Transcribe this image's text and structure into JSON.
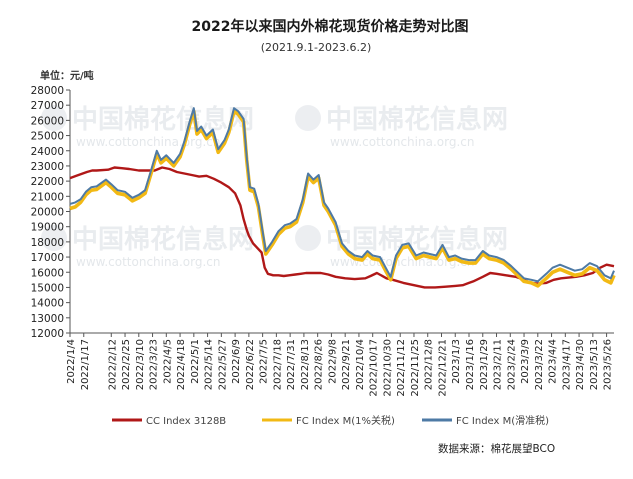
{
  "chart_data": {
    "type": "line",
    "title": "2022年以来国内外棉花现货价格走势对比图",
    "subtitle": "(2021.9.1-2023.6.2)",
    "ylabel": "单位：元/吨",
    "ylim": [
      12000,
      28000
    ],
    "yticks": [
      12000,
      13000,
      14000,
      15000,
      16000,
      17000,
      18000,
      19000,
      20000,
      21000,
      22000,
      23000,
      24000,
      25000,
      26000,
      27000,
      28000
    ],
    "xstart": "2022-01-04",
    "xend": "2023-06-02",
    "xticks": [
      "2022/1/4",
      "2022/1/17",
      "2022/2/12",
      "2022/2/25",
      "2022/3/10",
      "2022/3/23",
      "2022/4/5",
      "2022/4/18",
      "2022/5/1",
      "2022/5/14",
      "2022/5/27",
      "2022/6/9",
      "2022/6/22",
      "2022/7/5",
      "2022/7/18",
      "2022/7/31",
      "2022/8/13",
      "2022/8/26",
      "2022/9/8",
      "2022/9/21",
      "2022/10/4",
      "2022/10/17",
      "2022/10/30",
      "2022/11/12",
      "2022/11/25",
      "2022/12/8",
      "2022/12/21",
      "2023/1/3",
      "2023/1/16",
      "2023/1/29",
      "2023/2/11",
      "2023/2/24",
      "2023/3/9",
      "2023/3/22",
      "2023/4/4",
      "2023/4/17",
      "2023/4/30",
      "2023/5/13",
      "2023/5/26"
    ],
    "legend_position": "bottom",
    "grid": false,
    "series": [
      {
        "name": "CC Index 3128B",
        "color": "#b01818",
        "points": [
          [
            "2022-01-04",
            22200
          ],
          [
            "2022-01-10",
            22350
          ],
          [
            "2022-01-16",
            22500
          ],
          [
            "2022-01-20",
            22600
          ],
          [
            "2022-01-25",
            22700
          ],
          [
            "2022-01-29",
            22700
          ],
          [
            "2022-02-09",
            22750
          ],
          [
            "2022-02-15",
            22900
          ],
          [
            "2022-02-22",
            22850
          ],
          [
            "2022-03-01",
            22800
          ],
          [
            "2022-03-10",
            22700
          ],
          [
            "2022-03-18",
            22700
          ],
          [
            "2022-03-25",
            22700
          ],
          [
            "2022-04-01",
            22900
          ],
          [
            "2022-04-08",
            22800
          ],
          [
            "2022-04-15",
            22600
          ],
          [
            "2022-04-22",
            22500
          ],
          [
            "2022-04-29",
            22400
          ],
          [
            "2022-05-06",
            22300
          ],
          [
            "2022-05-13",
            22350
          ],
          [
            "2022-05-20",
            22150
          ],
          [
            "2022-05-27",
            21900
          ],
          [
            "2022-06-03",
            21600
          ],
          [
            "2022-06-09",
            21200
          ],
          [
            "2022-06-14",
            20400
          ],
          [
            "2022-06-17",
            19500
          ],
          [
            "2022-06-20",
            18800
          ],
          [
            "2022-06-22",
            18400
          ],
          [
            "2022-06-26",
            17900
          ],
          [
            "2022-06-30",
            17600
          ],
          [
            "2022-07-04",
            17300
          ],
          [
            "2022-07-07",
            16300
          ],
          [
            "2022-07-10",
            15900
          ],
          [
            "2022-07-15",
            15800
          ],
          [
            "2022-07-20",
            15800
          ],
          [
            "2022-07-25",
            15750
          ],
          [
            "2022-07-30",
            15800
          ],
          [
            "2022-08-05",
            15850
          ],
          [
            "2022-08-10",
            15900
          ],
          [
            "2022-08-15",
            15950
          ],
          [
            "2022-08-22",
            15950
          ],
          [
            "2022-08-29",
            15950
          ],
          [
            "2022-09-05",
            15850
          ],
          [
            "2022-09-12",
            15700
          ],
          [
            "2022-09-21",
            15600
          ],
          [
            "2022-09-30",
            15550
          ],
          [
            "2022-10-10",
            15600
          ],
          [
            "2022-10-15",
            15750
          ],
          [
            "2022-10-21",
            15950
          ],
          [
            "2022-10-30",
            15600
          ],
          [
            "2022-11-05",
            15500
          ],
          [
            "2022-11-15",
            15300
          ],
          [
            "2022-11-25",
            15150
          ],
          [
            "2022-12-05",
            15000
          ],
          [
            "2022-12-15",
            15000
          ],
          [
            "2022-12-25",
            15050
          ],
          [
            "2023-01-03",
            15100
          ],
          [
            "2023-01-10",
            15150
          ],
          [
            "2023-01-16",
            15300
          ],
          [
            "2023-01-20",
            15400
          ],
          [
            "2023-01-29",
            15700
          ],
          [
            "2023-02-05",
            15950
          ],
          [
            "2023-02-11",
            15900
          ],
          [
            "2023-02-20",
            15800
          ],
          [
            "2023-03-01",
            15700
          ],
          [
            "2023-03-09",
            15500
          ],
          [
            "2023-03-15",
            15300
          ],
          [
            "2023-03-22",
            15250
          ],
          [
            "2023-03-30",
            15300
          ],
          [
            "2023-04-06",
            15500
          ],
          [
            "2023-04-13",
            15600
          ],
          [
            "2023-04-20",
            15650
          ],
          [
            "2023-04-27",
            15700
          ],
          [
            "2023-05-05",
            15800
          ],
          [
            "2023-05-13",
            15950
          ],
          [
            "2023-05-20",
            16300
          ],
          [
            "2023-05-26",
            16500
          ],
          [
            "2023-06-02",
            16400
          ]
        ]
      },
      {
        "name": "FC Index M(1%关税)",
        "color": "#f2b914",
        "points": [
          [
            "2022-01-04",
            20200
          ],
          [
            "2022-01-09",
            20300
          ],
          [
            "2022-01-14",
            20600
          ],
          [
            "2022-01-19",
            21100
          ],
          [
            "2022-01-24",
            21400
          ],
          [
            "2022-01-29",
            21450
          ],
          [
            "2022-02-07",
            21900
          ],
          [
            "2022-02-12",
            21600
          ],
          [
            "2022-02-18",
            21200
          ],
          [
            "2022-02-25",
            21100
          ],
          [
            "2022-03-04",
            20700
          ],
          [
            "2022-03-10",
            20900
          ],
          [
            "2022-03-16",
            21200
          ],
          [
            "2022-03-22",
            22600
          ],
          [
            "2022-03-27",
            23800
          ],
          [
            "2022-03-31",
            23200
          ],
          [
            "2022-04-05",
            23500
          ],
          [
            "2022-04-12",
            23000
          ],
          [
            "2022-04-18",
            23600
          ],
          [
            "2022-04-22",
            24400
          ],
          [
            "2022-04-27",
            25700
          ],
          [
            "2022-05-01",
            26600
          ],
          [
            "2022-05-04",
            25100
          ],
          [
            "2022-05-08",
            25400
          ],
          [
            "2022-05-13",
            24800
          ],
          [
            "2022-05-19",
            25200
          ],
          [
            "2022-05-24",
            23900
          ],
          [
            "2022-05-30",
            24500
          ],
          [
            "2022-06-03",
            25200
          ],
          [
            "2022-06-08",
            26600
          ],
          [
            "2022-06-12",
            26400
          ],
          [
            "2022-06-17",
            25900
          ],
          [
            "2022-06-20",
            23400
          ],
          [
            "2022-06-23",
            21400
          ],
          [
            "2022-06-27",
            21300
          ],
          [
            "2022-07-01",
            20300
          ],
          [
            "2022-07-05",
            18500
          ],
          [
            "2022-07-08",
            17200
          ],
          [
            "2022-07-14",
            17800
          ],
          [
            "2022-07-20",
            18500
          ],
          [
            "2022-07-26",
            18900
          ],
          [
            "2022-07-31",
            19000
          ],
          [
            "2022-08-06",
            19300
          ],
          [
            "2022-08-12",
            20600
          ],
          [
            "2022-08-17",
            22300
          ],
          [
            "2022-08-22",
            21900
          ],
          [
            "2022-08-27",
            22200
          ],
          [
            "2022-09-01",
            20400
          ],
          [
            "2022-09-05",
            20000
          ],
          [
            "2022-09-12",
            19100
          ],
          [
            "2022-09-18",
            17700
          ],
          [
            "2022-09-24",
            17200
          ],
          [
            "2022-09-30",
            16900
          ],
          [
            "2022-10-07",
            16800
          ],
          [
            "2022-10-12",
            17200
          ],
          [
            "2022-10-17",
            16900
          ],
          [
            "2022-10-24",
            16800
          ],
          [
            "2022-10-30",
            16000
          ],
          [
            "2022-11-03",
            15500
          ],
          [
            "2022-11-08",
            16900
          ],
          [
            "2022-11-14",
            17600
          ],
          [
            "2022-11-20",
            17700
          ],
          [
            "2022-11-27",
            16900
          ],
          [
            "2022-12-04",
            17100
          ],
          [
            "2022-12-10",
            17000
          ],
          [
            "2022-12-16",
            16900
          ],
          [
            "2022-12-22",
            17600
          ],
          [
            "2022-12-28",
            16800
          ],
          [
            "2023-01-03",
            16900
          ],
          [
            "2023-01-09",
            16700
          ],
          [
            "2023-01-16",
            16600
          ],
          [
            "2023-01-22",
            16600
          ],
          [
            "2023-01-29",
            17200
          ],
          [
            "2023-02-04",
            16900
          ],
          [
            "2023-02-11",
            16800
          ],
          [
            "2023-02-18",
            16600
          ],
          [
            "2023-02-25",
            16200
          ],
          [
            "2023-03-03",
            15800
          ],
          [
            "2023-03-09",
            15400
          ],
          [
            "2023-03-16",
            15300
          ],
          [
            "2023-03-22",
            15100
          ],
          [
            "2023-03-30",
            15600
          ],
          [
            "2023-04-05",
            16000
          ],
          [
            "2023-04-12",
            16200
          ],
          [
            "2023-04-19",
            16000
          ],
          [
            "2023-04-26",
            15800
          ],
          [
            "2023-05-03",
            15900
          ],
          [
            "2023-05-10",
            16300
          ],
          [
            "2023-05-17",
            16100
          ],
          [
            "2023-05-24",
            15500
          ],
          [
            "2023-05-30",
            15300
          ],
          [
            "2023-06-02",
            15800
          ]
        ]
      },
      {
        "name": "FC Index M(滑准税)",
        "color": "#4e7aa5",
        "points": [
          [
            "2022-01-04",
            20500
          ],
          [
            "2022-01-09",
            20600
          ],
          [
            "2022-01-14",
            20800
          ],
          [
            "2022-01-19",
            21300
          ],
          [
            "2022-01-24",
            21600
          ],
          [
            "2022-01-29",
            21650
          ],
          [
            "2022-02-07",
            22100
          ],
          [
            "2022-02-12",
            21800
          ],
          [
            "2022-02-18",
            21400
          ],
          [
            "2022-02-25",
            21300
          ],
          [
            "2022-03-04",
            20900
          ],
          [
            "2022-03-10",
            21100
          ],
          [
            "2022-03-16",
            21400
          ],
          [
            "2022-03-22",
            22800
          ],
          [
            "2022-03-27",
            24000
          ],
          [
            "2022-03-31",
            23400
          ],
          [
            "2022-04-05",
            23700
          ],
          [
            "2022-04-12",
            23200
          ],
          [
            "2022-04-18",
            23800
          ],
          [
            "2022-04-22",
            24600
          ],
          [
            "2022-04-27",
            25900
          ],
          [
            "2022-05-01",
            26800
          ],
          [
            "2022-05-04",
            25300
          ],
          [
            "2022-05-08",
            25600
          ],
          [
            "2022-05-13",
            25000
          ],
          [
            "2022-05-19",
            25400
          ],
          [
            "2022-05-24",
            24100
          ],
          [
            "2022-05-30",
            24700
          ],
          [
            "2022-06-03",
            25400
          ],
          [
            "2022-06-08",
            26800
          ],
          [
            "2022-06-12",
            26600
          ],
          [
            "2022-06-17",
            26100
          ],
          [
            "2022-06-20",
            23600
          ],
          [
            "2022-06-23",
            21600
          ],
          [
            "2022-06-27",
            21500
          ],
          [
            "2022-07-01",
            20500
          ],
          [
            "2022-07-05",
            18700
          ],
          [
            "2022-07-08",
            17400
          ],
          [
            "2022-07-14",
            18000
          ],
          [
            "2022-07-20",
            18700
          ],
          [
            "2022-07-26",
            19100
          ],
          [
            "2022-07-31",
            19200
          ],
          [
            "2022-08-06",
            19500
          ],
          [
            "2022-08-12",
            20800
          ],
          [
            "2022-08-17",
            22500
          ],
          [
            "2022-08-22",
            22100
          ],
          [
            "2022-08-27",
            22400
          ],
          [
            "2022-09-01",
            20600
          ],
          [
            "2022-09-05",
            20200
          ],
          [
            "2022-09-12",
            19300
          ],
          [
            "2022-09-18",
            17900
          ],
          [
            "2022-09-24",
            17400
          ],
          [
            "2022-09-30",
            17100
          ],
          [
            "2022-10-07",
            17000
          ],
          [
            "2022-10-12",
            17400
          ],
          [
            "2022-10-17",
            17100
          ],
          [
            "2022-10-24",
            17000
          ],
          [
            "2022-10-30",
            16200
          ],
          [
            "2022-11-03",
            15700
          ],
          [
            "2022-11-08",
            17100
          ],
          [
            "2022-11-14",
            17800
          ],
          [
            "2022-11-20",
            17900
          ],
          [
            "2022-11-27",
            17100
          ],
          [
            "2022-12-04",
            17300
          ],
          [
            "2022-12-10",
            17200
          ],
          [
            "2022-12-16",
            17100
          ],
          [
            "2022-12-22",
            17800
          ],
          [
            "2022-12-28",
            17000
          ],
          [
            "2023-01-03",
            17100
          ],
          [
            "2023-01-09",
            16900
          ],
          [
            "2023-01-16",
            16800
          ],
          [
            "2023-01-22",
            16800
          ],
          [
            "2023-01-29",
            17400
          ],
          [
            "2023-02-04",
            17100
          ],
          [
            "2023-02-11",
            17000
          ],
          [
            "2023-02-18",
            16800
          ],
          [
            "2023-02-25",
            16400
          ],
          [
            "2023-03-03",
            16000
          ],
          [
            "2023-03-09",
            15600
          ],
          [
            "2023-03-16",
            15500
          ],
          [
            "2023-03-22",
            15400
          ],
          [
            "2023-03-30",
            15900
          ],
          [
            "2023-04-05",
            16300
          ],
          [
            "2023-04-12",
            16500
          ],
          [
            "2023-04-19",
            16300
          ],
          [
            "2023-04-26",
            16100
          ],
          [
            "2023-05-03",
            16200
          ],
          [
            "2023-05-10",
            16600
          ],
          [
            "2023-05-17",
            16400
          ],
          [
            "2023-05-24",
            15800
          ],
          [
            "2023-05-30",
            15600
          ],
          [
            "2023-06-02",
            16100
          ]
        ]
      }
    ],
    "source": "数据来源：棉花展望BCO"
  },
  "watermark": {
    "text": "中国棉花信息网",
    "url": "www.cottonchina.org.cn"
  }
}
